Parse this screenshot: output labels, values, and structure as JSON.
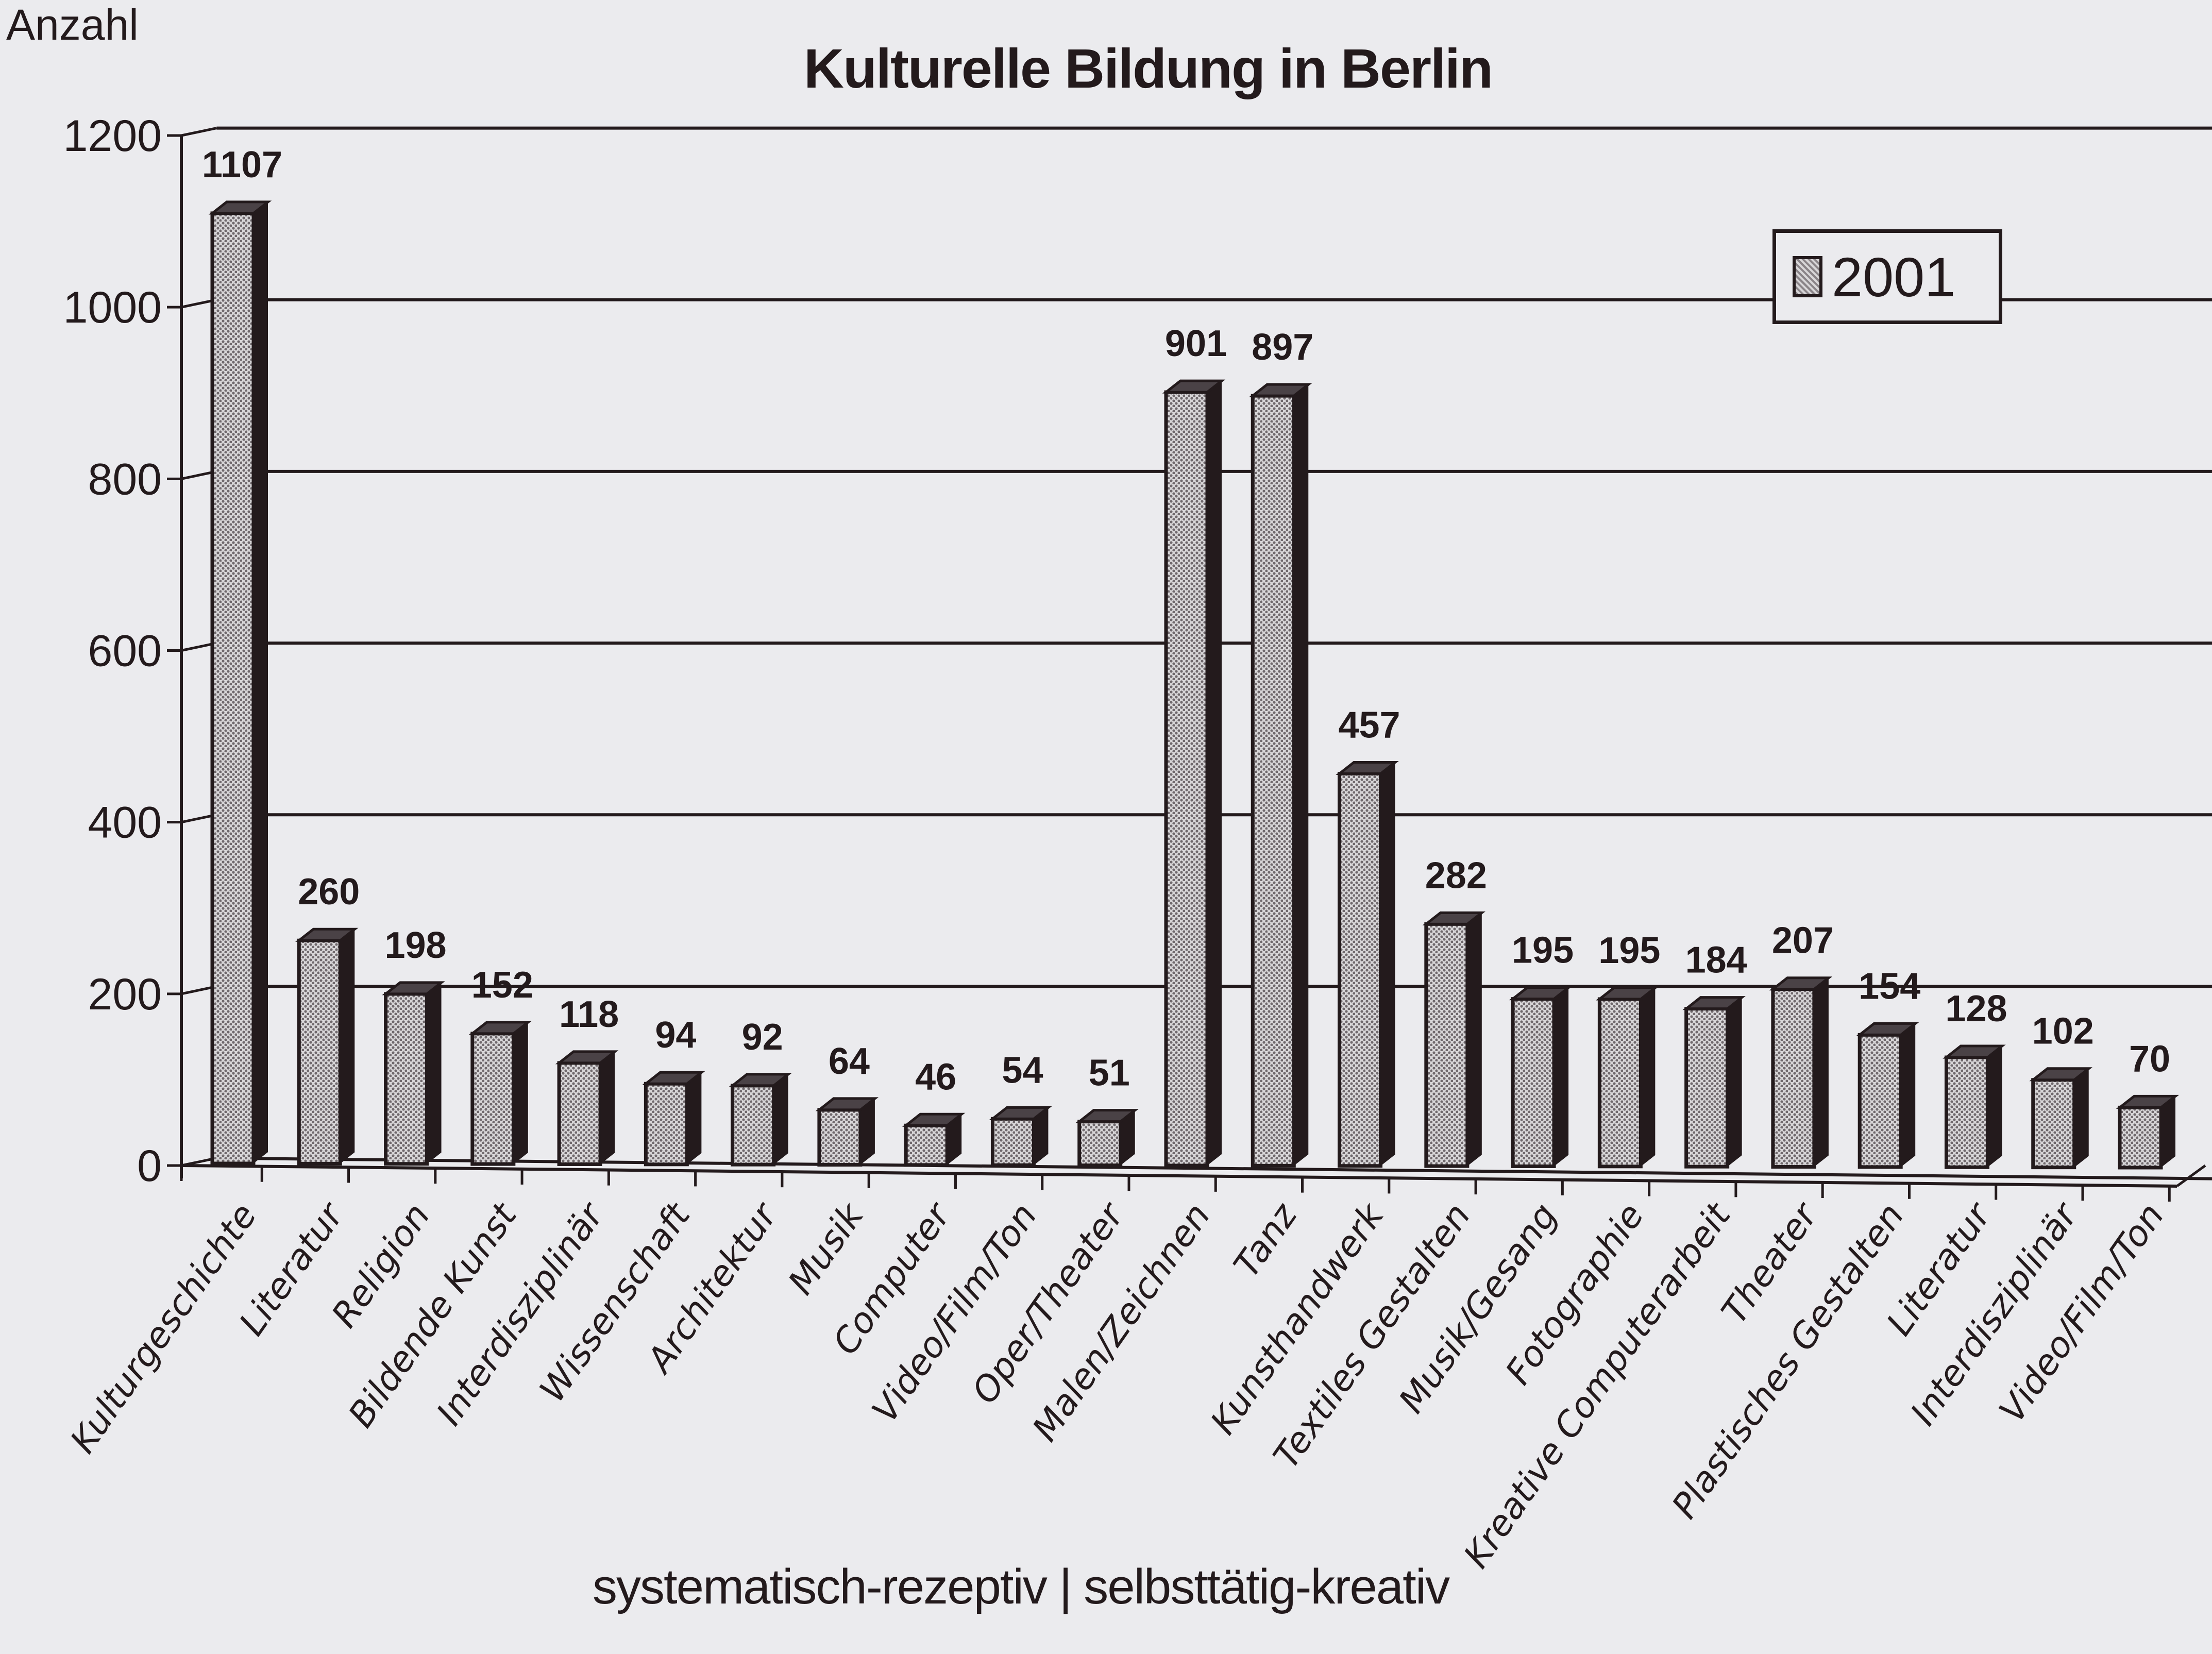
{
  "title": "Kulturelle Bildung in Berlin",
  "y_axis_label": "Anzahl",
  "caption": "systematisch-rezeptiv | selbsttätig-kreativ",
  "legend": {
    "label": "2001"
  },
  "colors": {
    "ink": "#231a1c",
    "background": "#ebebee",
    "bar_fill_light": "#d8d6d8",
    "bar_fill_dark": "#8a8488"
  },
  "chart_data": {
    "type": "bar",
    "title": "Kulturelle Bildung in Berlin",
    "xlabel": "systematisch-rezeptiv | selbsttätig-kreativ",
    "ylabel": "Anzahl",
    "ylim": [
      0,
      1200
    ],
    "yticks": [
      0,
      200,
      400,
      600,
      800,
      1000,
      1200
    ],
    "grid": true,
    "legend_position": "upper right",
    "style": "3d-bar",
    "categories": [
      "Kulturgeschichte",
      "Literatur",
      "Religion",
      "Bildende Kunst",
      "Interdisziplinär",
      "Wissenschaft",
      "Architektur",
      "Musik",
      "Computer",
      "Video/Film/Ton",
      "Oper/Theater",
      "Malen/Zeichnen",
      "Tanz",
      "Kunsthandwerk",
      "Textiles Gestalten",
      "Musik/Gesang",
      "Fotographie",
      "Kreative Computerarbeit",
      "Theater",
      "Plastisches Gestalten",
      "Literatur",
      "Interdisziplinär",
      "Video/Film/Ton"
    ],
    "series": [
      {
        "name": "2001",
        "values": [
          1107,
          260,
          198,
          152,
          118,
          94,
          92,
          64,
          46,
          54,
          51,
          901,
          897,
          457,
          282,
          195,
          195,
          184,
          207,
          154,
          128,
          102,
          70
        ]
      }
    ],
    "groups": [
      {
        "name": "systematisch-rezeptiv",
        "range": [
          0,
          10
        ]
      },
      {
        "name": "selbsttätig-kreativ",
        "range": [
          11,
          22
        ]
      }
    ]
  }
}
